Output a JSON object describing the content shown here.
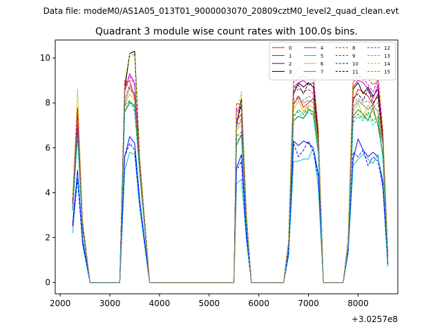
{
  "header": {
    "data_file": "Data file: modeM0/AS1A05_013T01_9000003070_20809cztM0_level2_quad_clean.evt"
  },
  "chart_data": {
    "type": "line",
    "title": "Quadrant 3 module wise count rates with 100.0s bins.",
    "xlabel": "",
    "ylabel": "",
    "x_offset_label": "+3.0257e8",
    "xlim": [
      1900,
      8800
    ],
    "ylim": [
      -0.5,
      10.8
    ],
    "xticks": [
      2000,
      3000,
      4000,
      5000,
      6000,
      7000,
      8000
    ],
    "yticks": [
      0,
      2,
      4,
      6,
      8,
      10
    ],
    "legend_position": "top-right",
    "x": [
      2250,
      2350,
      2450,
      2600,
      3200,
      3300,
      3400,
      3500,
      3600,
      3800,
      5500,
      5550,
      5650,
      5750,
      5850,
      6500,
      6600,
      6700,
      6800,
      6900,
      7000,
      7100,
      7200,
      7300,
      7700,
      7800,
      7900,
      8000,
      8100,
      8200,
      8300,
      8400,
      8500,
      8600
    ],
    "series": [
      {
        "name": "0",
        "color": "#ff0000",
        "dash": "solid",
        "values": [
          3.6,
          7.8,
          2.7,
          0,
          0,
          8.8,
          9.0,
          8.2,
          5.4,
          0,
          0,
          7.2,
          7.5,
          2.9,
          0,
          0,
          1.8,
          7.9,
          8.3,
          7.8,
          8.0,
          8.2,
          6.5,
          0,
          0,
          1.7,
          8.1,
          8.6,
          8.5,
          8.3,
          7.9,
          8.4,
          6.3,
          1.2
        ]
      },
      {
        "name": "1",
        "color": "#008000",
        "dash": "solid",
        "values": [
          3.2,
          6.8,
          2.4,
          0,
          0,
          7.6,
          8.0,
          7.9,
          5.0,
          0,
          0,
          6.1,
          6.6,
          2.6,
          0,
          0,
          1.5,
          7.2,
          7.4,
          7.3,
          7.7,
          7.6,
          5.8,
          0,
          0,
          1.5,
          7.4,
          7.7,
          7.5,
          7.2,
          7.8,
          7.0,
          5.7,
          1.0
        ]
      },
      {
        "name": "2",
        "color": "#0000ff",
        "dash": "solid",
        "values": [
          2.6,
          5.0,
          1.9,
          0,
          0,
          5.6,
          6.5,
          6.2,
          3.7,
          0,
          0,
          5.1,
          5.7,
          2.2,
          0,
          0,
          1.3,
          6.3,
          6.1,
          6.3,
          6.2,
          6.0,
          4.8,
          0,
          0,
          1.4,
          5.5,
          6.4,
          5.9,
          5.6,
          5.8,
          5.6,
          4.5,
          0.8
        ]
      },
      {
        "name": "3",
        "color": "#000000",
        "dash": "solid",
        "values": [
          3.7,
          7.2,
          2.6,
          0,
          0,
          8.6,
          10.2,
          10.3,
          5.5,
          0,
          0,
          7.0,
          8.2,
          2.9,
          0,
          0,
          1.8,
          8.4,
          8.9,
          8.7,
          8.9,
          8.7,
          6.4,
          0,
          0,
          1.8,
          8.6,
          8.9,
          8.4,
          8.7,
          8.3,
          8.6,
          6.5,
          1.2
        ]
      },
      {
        "name": "4",
        "color": "#bf00bf",
        "dash": "solid",
        "values": [
          3.5,
          7.4,
          2.6,
          0,
          0,
          8.5,
          9.3,
          8.9,
          5.3,
          0,
          0,
          7.6,
          7.8,
          3.0,
          0,
          0,
          1.8,
          8.7,
          8.9,
          9.0,
          8.8,
          8.9,
          6.6,
          0,
          0,
          1.8,
          8.7,
          9.0,
          8.9,
          8.6,
          8.2,
          8.8,
          6.5,
          1.2
        ]
      },
      {
        "name": "5",
        "color": "#00bfbf",
        "dash": "solid",
        "values": [
          2.2,
          4.8,
          1.7,
          0,
          0,
          5.0,
          5.8,
          5.7,
          3.3,
          0,
          0,
          4.4,
          4.6,
          1.9,
          0,
          0,
          1.2,
          5.4,
          5.4,
          5.5,
          5.5,
          6.0,
          4.2,
          0,
          0,
          1.3,
          5.2,
          5.5,
          5.7,
          5.5,
          5.3,
          5.7,
          4.2,
          0.7
        ]
      },
      {
        "name": "6",
        "color": "#bfbf00",
        "dash": "solid",
        "values": [
          3.5,
          7.1,
          2.5,
          0,
          0,
          7.9,
          8.4,
          8.1,
          5.0,
          0,
          0,
          6.8,
          7.0,
          2.8,
          0,
          0,
          1.7,
          7.7,
          8.1,
          7.6,
          7.9,
          7.8,
          6.0,
          0,
          0,
          1.7,
          7.6,
          8.0,
          7.4,
          7.9,
          7.6,
          7.1,
          6.2,
          1.1
        ]
      },
      {
        "name": "7",
        "color": "#808080",
        "dash": "solid",
        "values": [
          3.4,
          6.9,
          2.5,
          0,
          0,
          8.0,
          8.7,
          8.3,
          5.1,
          0,
          0,
          6.9,
          7.2,
          2.8,
          0,
          0,
          1.7,
          8.0,
          8.2,
          8.0,
          8.1,
          8.0,
          6.1,
          0,
          0,
          1.7,
          7.8,
          8.1,
          7.9,
          7.7,
          7.9,
          7.6,
          6.1,
          1.1
        ]
      },
      {
        "name": "8",
        "color": "#ff0000",
        "dash": "dashed",
        "values": [
          3.6,
          7.6,
          2.7,
          0,
          0,
          9.0,
          8.6,
          8.4,
          5.4,
          0,
          0,
          8.0,
          7.9,
          3.0,
          0,
          0,
          1.8,
          8.5,
          8.6,
          8.5,
          8.6,
          8.4,
          6.6,
          0,
          0,
          1.9,
          9.2,
          9.3,
          9.0,
          9.1,
          8.8,
          9.0,
          6.7,
          1.2
        ]
      },
      {
        "name": "9",
        "color": "#008000",
        "dash": "dashed",
        "values": [
          3.3,
          6.6,
          2.4,
          0,
          0,
          7.9,
          8.1,
          7.8,
          4.9,
          0,
          0,
          6.5,
          6.7,
          2.6,
          0,
          0,
          1.6,
          7.4,
          7.7,
          7.5,
          7.8,
          7.4,
          5.8,
          0,
          0,
          1.6,
          7.3,
          7.5,
          7.3,
          7.6,
          7.2,
          7.4,
          5.6,
          1.0
        ]
      },
      {
        "name": "10",
        "color": "#0000ff",
        "dash": "dashed",
        "values": [
          2.5,
          4.6,
          1.8,
          0,
          0,
          5.6,
          6.2,
          5.9,
          3.6,
          0,
          0,
          5.0,
          5.4,
          2.1,
          0,
          0,
          1.3,
          6.2,
          5.6,
          5.9,
          6.3,
          5.8,
          4.7,
          0,
          0,
          1.4,
          5.8,
          5.6,
          5.9,
          5.2,
          5.6,
          5.4,
          4.3,
          0.8
        ]
      },
      {
        "name": "11",
        "color": "#000000",
        "dash": "dashed",
        "values": [
          3.6,
          7.0,
          2.6,
          0,
          0,
          8.7,
          10.2,
          10.3,
          5.5,
          0,
          0,
          7.1,
          7.9,
          2.9,
          0,
          0,
          1.8,
          8.6,
          8.8,
          8.4,
          8.9,
          8.7,
          6.4,
          0,
          0,
          1.8,
          8.2,
          8.4,
          8.1,
          8.6,
          8.0,
          8.3,
          6.4,
          1.2
        ]
      },
      {
        "name": "12",
        "color": "#bf00bf",
        "dash": "dashed",
        "values": [
          3.5,
          7.5,
          2.6,
          0,
          0,
          8.7,
          9.2,
          8.8,
          5.3,
          0,
          0,
          7.7,
          7.9,
          3.0,
          0,
          0,
          1.8,
          8.9,
          9.1,
          9.2,
          9.0,
          9.1,
          6.7,
          0,
          0,
          1.8,
          8.9,
          9.2,
          9.1,
          8.8,
          8.5,
          9.0,
          6.6,
          1.2
        ]
      },
      {
        "name": "13",
        "color": "#00bfbf",
        "dash": "dashed",
        "values": [
          3.2,
          6.5,
          2.3,
          0,
          0,
          7.7,
          8.1,
          7.6,
          4.8,
          0,
          0,
          6.3,
          6.5,
          2.5,
          0,
          0,
          1.6,
          7.4,
          7.6,
          7.3,
          7.6,
          7.4,
          5.7,
          0,
          0,
          1.6,
          7.1,
          7.4,
          7.2,
          7.5,
          7.0,
          7.3,
          5.5,
          1.0
        ]
      },
      {
        "name": "14",
        "color": "#bfbf00",
        "dash": "dashed",
        "values": [
          3.8,
          8.6,
          2.8,
          0,
          0,
          8.9,
          10.2,
          10.1,
          5.6,
          0,
          0,
          7.5,
          8.5,
          3.0,
          0,
          0,
          1.9,
          9.2,
          9.6,
          9.4,
          9.3,
          9.4,
          6.9,
          0,
          0,
          1.9,
          9.4,
          9.6,
          9.5,
          9.3,
          9.0,
          9.5,
          6.9,
          1.2
        ]
      },
      {
        "name": "15",
        "color": "#808080",
        "dash": "dashed",
        "values": [
          3.4,
          7.2,
          2.5,
          0,
          0,
          8.2,
          8.8,
          8.4,
          5.1,
          0,
          0,
          7.0,
          7.3,
          2.8,
          0,
          0,
          1.7,
          8.1,
          8.3,
          8.1,
          8.3,
          8.2,
          6.2,
          0,
          0,
          1.7,
          8.0,
          8.2,
          8.0,
          8.1,
          7.8,
          8.0,
          6.2,
          1.1
        ]
      }
    ]
  }
}
